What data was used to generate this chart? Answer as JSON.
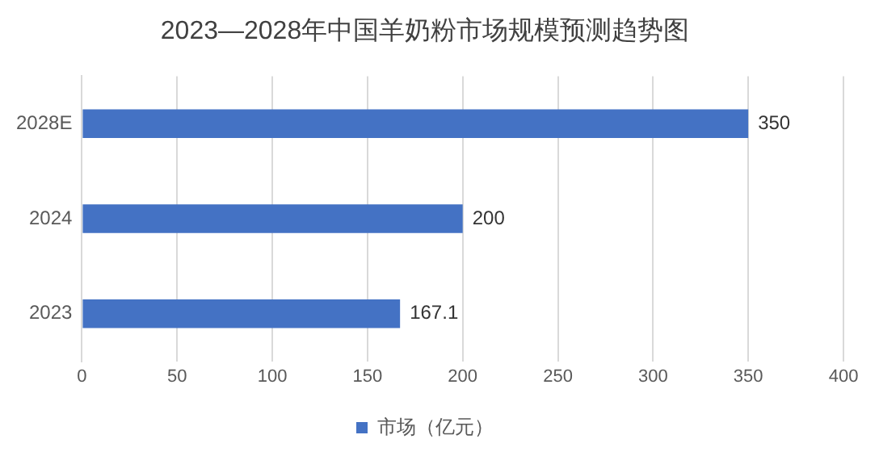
{
  "chart_data": {
    "type": "bar",
    "orientation": "horizontal",
    "title": "2023—2028年中国羊奶粉市场规模预测趋势图",
    "categories": [
      "2028E",
      "2024",
      "2023"
    ],
    "series": [
      {
        "name": "市场（亿元）",
        "color": "#4472c4",
        "values": [
          350,
          200,
          167.1
        ]
      }
    ],
    "xlim": [
      0,
      400
    ],
    "xticks": [
      0,
      50,
      100,
      150,
      200,
      250,
      300,
      350,
      400
    ],
    "grid": "x",
    "legend": "bottom",
    "data_labels": true
  }
}
